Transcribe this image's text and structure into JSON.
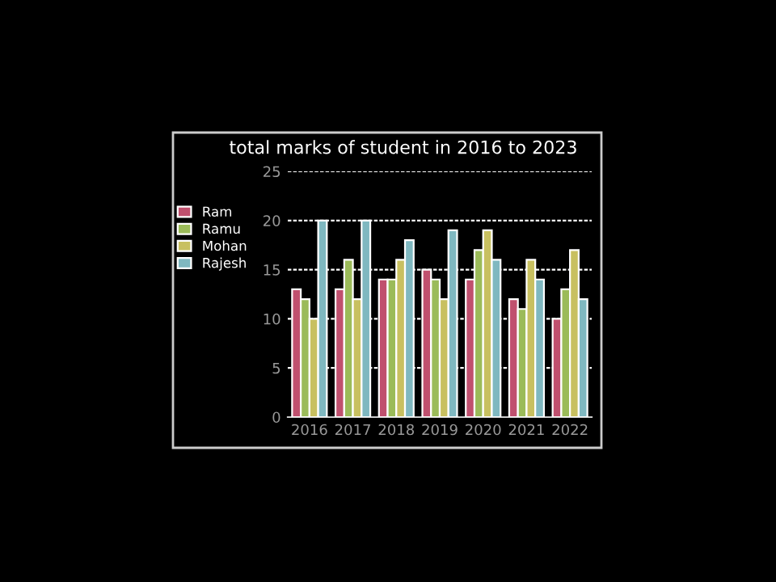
{
  "chart_data": {
    "type": "bar",
    "title": "total marks of student in 2016 to 2023",
    "categories": [
      "2016",
      "2017",
      "2018",
      "2019",
      "2020",
      "2021",
      "2022"
    ],
    "series": [
      {
        "name": "Ram",
        "color": "#c0506e",
        "values": [
          13,
          13,
          14,
          15,
          14,
          12,
          10
        ]
      },
      {
        "name": "Ramu",
        "color": "#9bbb59",
        "values": [
          12,
          16,
          14,
          14,
          17,
          11,
          13
        ]
      },
      {
        "name": "Mohan",
        "color": "#c8c060",
        "values": [
          10,
          12,
          16,
          12,
          19,
          16,
          17
        ]
      },
      {
        "name": "Rajesh",
        "color": "#7fb8c0",
        "values": [
          20,
          20,
          18,
          19,
          16,
          14,
          12
        ]
      }
    ],
    "ylim": [
      0,
      25
    ],
    "yticks": [
      0,
      5,
      10,
      15,
      20,
      25
    ],
    "grid": "y",
    "legend": "left"
  }
}
